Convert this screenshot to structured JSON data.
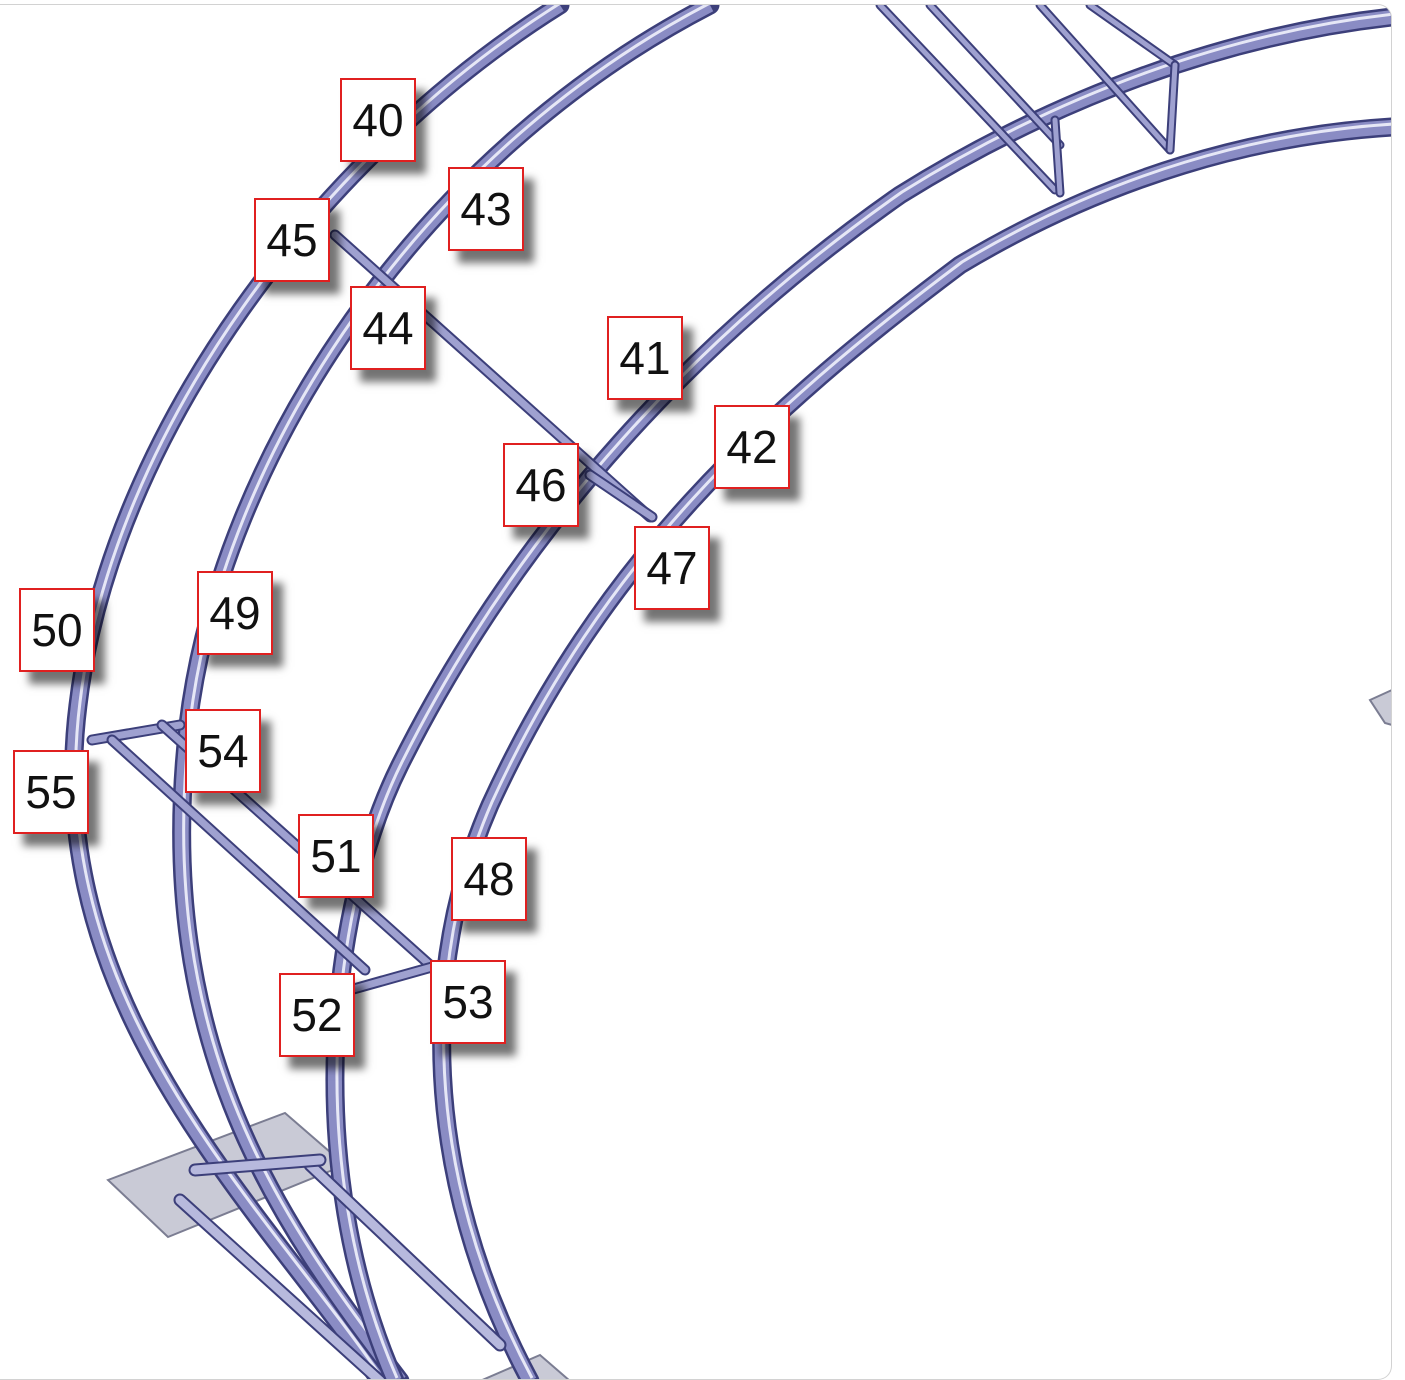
{
  "diagram": {
    "colors": {
      "tube": "#8a8cc4",
      "tube_dark": "#3c3f7a",
      "tube_highlight": "#e6e7f6",
      "plate": "#c9cad6",
      "callout_border": "#e02020",
      "callout_text": "#111111"
    },
    "callouts": [
      "40",
      "41",
      "42",
      "43",
      "44",
      "45",
      "46",
      "47",
      "48",
      "49",
      "50",
      "51",
      "52",
      "53",
      "54",
      "55"
    ]
  }
}
